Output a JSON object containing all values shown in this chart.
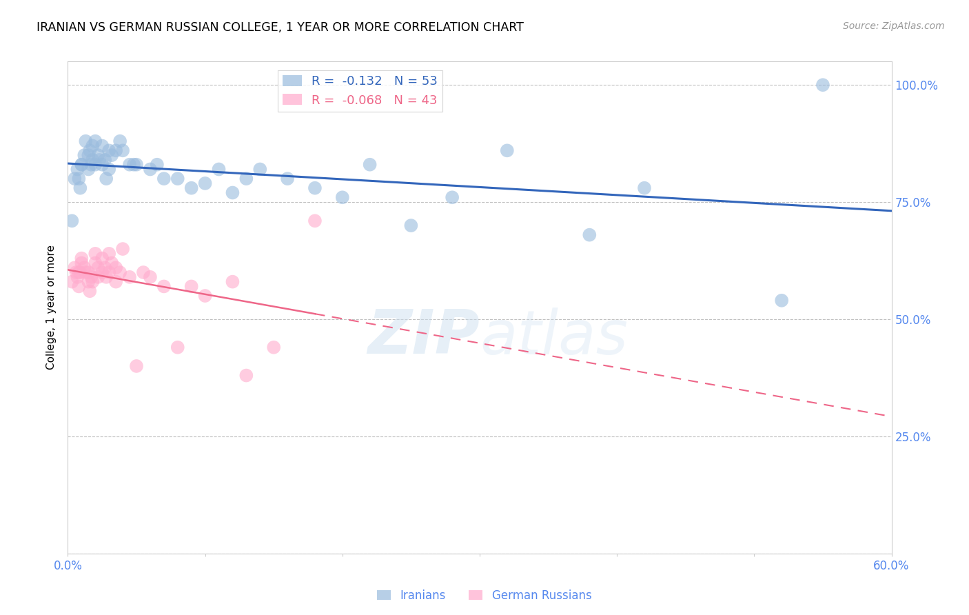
{
  "title": "IRANIAN VS GERMAN RUSSIAN COLLEGE, 1 YEAR OR MORE CORRELATION CHART",
  "source": "Source: ZipAtlas.com",
  "ylabel": "College, 1 year or more",
  "watermark": "ZIPatlas",
  "xlim": [
    0.0,
    0.6
  ],
  "ylim": [
    0.0,
    1.05
  ],
  "xticks": [
    0.0,
    0.1,
    0.2,
    0.3,
    0.4,
    0.5,
    0.6
  ],
  "xticklabels": [
    "0.0%",
    "",
    "",
    "",
    "",
    "",
    "60.0%"
  ],
  "yticks": [
    0.0,
    0.25,
    0.5,
    0.75,
    1.0
  ],
  "yticklabels": [
    "",
    "25.0%",
    "50.0%",
    "75.0%",
    "100.0%"
  ],
  "legend_r_blue": "-0.132",
  "legend_n_blue": "53",
  "legend_r_pink": "-0.068",
  "legend_n_pink": "43",
  "blue_color": "#99BBDD",
  "pink_color": "#FFAACC",
  "blue_line_color": "#3366BB",
  "pink_line_color": "#EE6688",
  "axis_color": "#5588EE",
  "grid_color": "#BBBBBB",
  "iranians_x": [
    0.003,
    0.005,
    0.007,
    0.008,
    0.009,
    0.01,
    0.01,
    0.012,
    0.013,
    0.015,
    0.015,
    0.016,
    0.017,
    0.018,
    0.018,
    0.02,
    0.02,
    0.022,
    0.023,
    0.025,
    0.025,
    0.027,
    0.028,
    0.03,
    0.03,
    0.032,
    0.035,
    0.038,
    0.04,
    0.045,
    0.048,
    0.05,
    0.06,
    0.065,
    0.07,
    0.08,
    0.09,
    0.1,
    0.11,
    0.12,
    0.13,
    0.14,
    0.16,
    0.18,
    0.2,
    0.22,
    0.25,
    0.28,
    0.32,
    0.38,
    0.42,
    0.52,
    0.55
  ],
  "iranians_y": [
    0.71,
    0.8,
    0.82,
    0.8,
    0.78,
    0.83,
    0.83,
    0.85,
    0.88,
    0.85,
    0.82,
    0.86,
    0.83,
    0.84,
    0.87,
    0.83,
    0.88,
    0.85,
    0.84,
    0.83,
    0.87,
    0.84,
    0.8,
    0.86,
    0.82,
    0.85,
    0.86,
    0.88,
    0.86,
    0.83,
    0.83,
    0.83,
    0.82,
    0.83,
    0.8,
    0.8,
    0.78,
    0.79,
    0.82,
    0.77,
    0.8,
    0.82,
    0.8,
    0.78,
    0.76,
    0.83,
    0.7,
    0.76,
    0.86,
    0.68,
    0.78,
    0.54,
    1.0
  ],
  "german_russian_x": [
    0.003,
    0.005,
    0.006,
    0.007,
    0.008,
    0.008,
    0.009,
    0.01,
    0.01,
    0.012,
    0.013,
    0.015,
    0.015,
    0.016,
    0.017,
    0.018,
    0.02,
    0.02,
    0.022,
    0.022,
    0.025,
    0.025,
    0.027,
    0.028,
    0.03,
    0.03,
    0.032,
    0.035,
    0.035,
    0.038,
    0.04,
    0.045,
    0.05,
    0.055,
    0.06,
    0.07,
    0.08,
    0.09,
    0.1,
    0.12,
    0.13,
    0.15,
    0.18
  ],
  "german_russian_y": [
    0.58,
    0.61,
    0.6,
    0.59,
    0.57,
    0.6,
    0.6,
    0.62,
    0.63,
    0.61,
    0.6,
    0.58,
    0.6,
    0.56,
    0.59,
    0.58,
    0.64,
    0.62,
    0.61,
    0.59,
    0.63,
    0.6,
    0.61,
    0.59,
    0.64,
    0.6,
    0.62,
    0.61,
    0.58,
    0.6,
    0.65,
    0.59,
    0.4,
    0.6,
    0.59,
    0.57,
    0.44,
    0.57,
    0.55,
    0.58,
    0.38,
    0.44,
    0.71
  ]
}
